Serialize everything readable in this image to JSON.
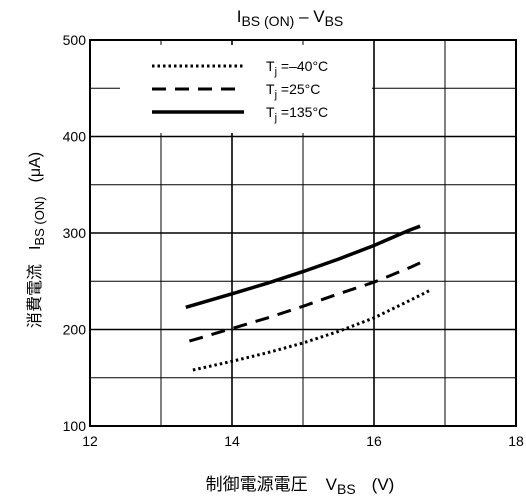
{
  "chart_data": {
    "type": "line",
    "title": {
      "main": "I",
      "main_sub": "BS (ON)",
      "sep": " – V",
      "sep_sub": "BS"
    },
    "xlabel": {
      "text": "制御電源電圧",
      "sym": "V",
      "sym_sub": "BS",
      "unit": "(V)"
    },
    "ylabel": {
      "text": "消費電流",
      "sym": "I",
      "sym_sub": "BS (ON)",
      "unit": "(μA)"
    },
    "xlim": [
      12,
      18
    ],
    "ylim": [
      100,
      500
    ],
    "x_ticks": [
      12,
      14,
      16,
      18
    ],
    "y_ticks": [
      100,
      200,
      300,
      400,
      500
    ],
    "x_tick_labels": [
      "12",
      "14",
      "16",
      "18"
    ],
    "y_tick_labels": [
      "100",
      "200",
      "300",
      "400",
      "500"
    ],
    "x_grid_step": 1,
    "y_grid_step": 50,
    "grid": true,
    "legend_position": "top-left",
    "series": [
      {
        "name": "T",
        "name_sub": "j",
        "name_suffix": " =–40°C",
        "style": "dotted",
        "width": 3,
        "points": [
          [
            13.45,
            158
          ],
          [
            14.0,
            167
          ],
          [
            14.5,
            176
          ],
          [
            15.0,
            186
          ],
          [
            15.5,
            198
          ],
          [
            16.0,
            212
          ],
          [
            16.5,
            230
          ],
          [
            16.8,
            241
          ]
        ]
      },
      {
        "name": "T",
        "name_sub": "j",
        "name_suffix": " =25°C",
        "style": "dashed",
        "width": 3,
        "points": [
          [
            13.4,
            188
          ],
          [
            14.0,
            201
          ],
          [
            14.5,
            212
          ],
          [
            15.0,
            224
          ],
          [
            15.5,
            237
          ],
          [
            16.0,
            249
          ],
          [
            16.5,
            264
          ],
          [
            16.65,
            269
          ]
        ]
      },
      {
        "name": "T",
        "name_sub": "j",
        "name_suffix": " =135°C",
        "style": "solid",
        "width": 3.5,
        "points": [
          [
            13.35,
            223
          ],
          [
            14.0,
            237
          ],
          [
            14.5,
            248
          ],
          [
            15.0,
            260
          ],
          [
            15.5,
            273
          ],
          [
            16.0,
            287
          ],
          [
            16.5,
            303
          ],
          [
            16.65,
            307
          ]
        ]
      }
    ],
    "line_color": "#000000"
  }
}
